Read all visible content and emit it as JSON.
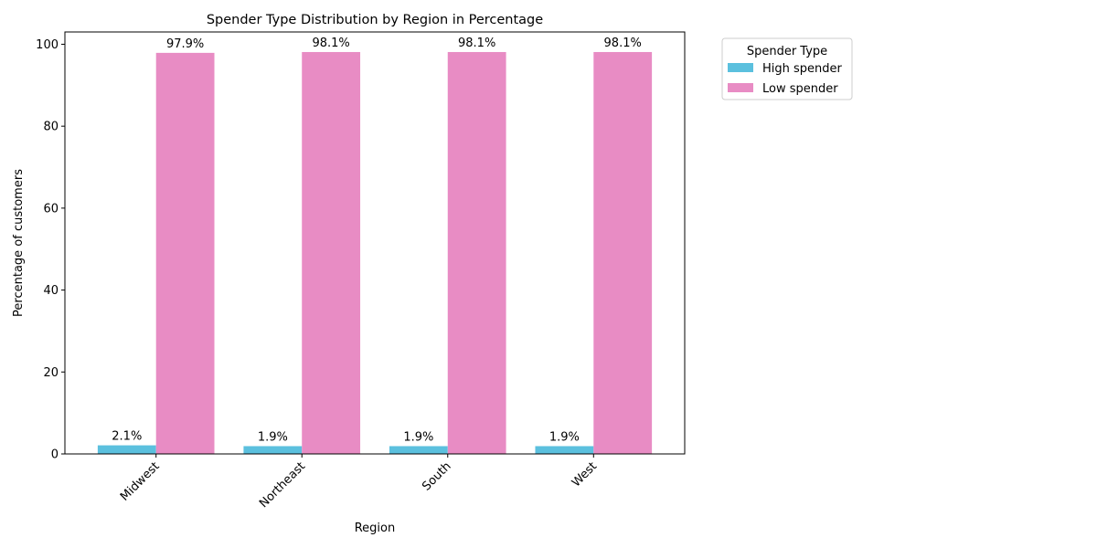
{
  "chart_data": {
    "type": "bar",
    "title": "Spender Type Distribution by Region in Percentage",
    "xlabel": "Region",
    "ylabel": "Percentage of customers",
    "categories": [
      "Midwest",
      "Northeast",
      "South",
      "West"
    ],
    "ylim": [
      0,
      103
    ],
    "yticks": [
      0,
      20,
      40,
      60,
      80,
      100
    ],
    "grid": false,
    "legend": {
      "title": "Spender Type",
      "placement": "outside-top-right"
    },
    "series": [
      {
        "name": "High spender",
        "color": "#5bc0de",
        "values": [
          2.1,
          1.9,
          1.9,
          1.9
        ],
        "labels": [
          "2.1%",
          "1.9%",
          "1.9%",
          "1.9%"
        ]
      },
      {
        "name": "Low spender",
        "color": "#e88cc4",
        "values": [
          97.9,
          98.1,
          98.1,
          98.1
        ],
        "labels": [
          "97.9%",
          "98.1%",
          "98.1%",
          "98.1%"
        ]
      }
    ]
  }
}
